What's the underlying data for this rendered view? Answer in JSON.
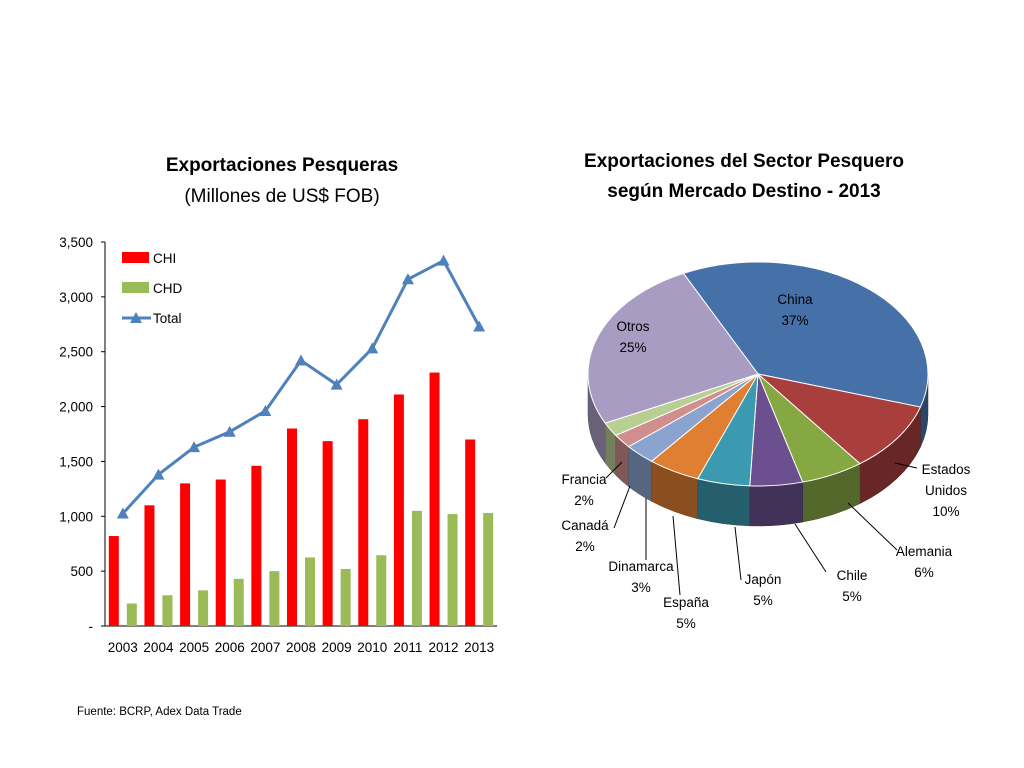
{
  "source": "Fuente: BCRP, Adex Data Trade",
  "chart_data": [
    {
      "type": "bar",
      "title": "Exportaciones Pesqueras",
      "subtitle": "(Millones de US$ FOB)",
      "categories": [
        "2003",
        "2004",
        "2005",
        "2006",
        "2007",
        "2008",
        "2009",
        "2010",
        "2011",
        "2012",
        "2013"
      ],
      "series": [
        {
          "name": "CHI",
          "kind": "bar",
          "color": "#FF0000",
          "values": [
            820,
            1100,
            1300,
            1335,
            1460,
            1800,
            1685,
            1885,
            2110,
            2310,
            1700
          ]
        },
        {
          "name": "CHD",
          "kind": "bar",
          "color": "#9BBB59",
          "values": [
            205,
            280,
            325,
            430,
            500,
            625,
            520,
            645,
            1050,
            1020,
            1030
          ]
        },
        {
          "name": "Total",
          "kind": "line",
          "color": "#4F81BD",
          "values": [
            1025,
            1380,
            1630,
            1770,
            1960,
            2420,
            2200,
            2530,
            3160,
            3330,
            2730
          ]
        }
      ],
      "ylim": [
        0,
        3500
      ],
      "yticks": [
        0,
        500,
        1000,
        1500,
        2000,
        2500,
        3000,
        3500
      ],
      "ytick_labels": [
        "-",
        "500",
        "1,000",
        "1,500",
        "2,000",
        "2,500",
        "3,000",
        "3,500"
      ],
      "legend_position": "top-left",
      "grid": false
    },
    {
      "type": "pie",
      "title_line1": "Exportaciones del Sector Pesquero",
      "title_line2": "según Mercado Destino - 2013",
      "slices": [
        {
          "label": "China",
          "label_line2": "",
          "pct_label": "37%",
          "value": 37,
          "color": "#4670A8"
        },
        {
          "label": "Estados",
          "label_line2": "Unidos",
          "pct_label": "10%",
          "value": 10,
          "color": "#A83F3D"
        },
        {
          "label": "Alemania",
          "label_line2": "",
          "pct_label": "6%",
          "value": 6,
          "color": "#86A843"
        },
        {
          "label": "Chile",
          "label_line2": "",
          "pct_label": "5%",
          "value": 5,
          "color": "#6B4F8F"
        },
        {
          "label": "Japón",
          "label_line2": "",
          "pct_label": "5%",
          "value": 5,
          "color": "#3B9AB0"
        },
        {
          "label": "España",
          "label_line2": "",
          "pct_label": "5%",
          "value": 5,
          "color": "#E07E31"
        },
        {
          "label": "Dinamarca",
          "label_line2": "",
          "pct_label": "3%",
          "value": 3,
          "color": "#8BA4CF"
        },
        {
          "label": "Canadá",
          "label_line2": "",
          "pct_label": "2%",
          "value": 2,
          "color": "#D08E8D"
        },
        {
          "label": "Francia",
          "label_line2": "",
          "pct_label": "2%",
          "value": 2,
          "color": "#B8CF93"
        },
        {
          "label": "Otros",
          "label_line2": "",
          "pct_label": "25%",
          "value": 25,
          "color": "#A99CC2"
        }
      ]
    }
  ]
}
